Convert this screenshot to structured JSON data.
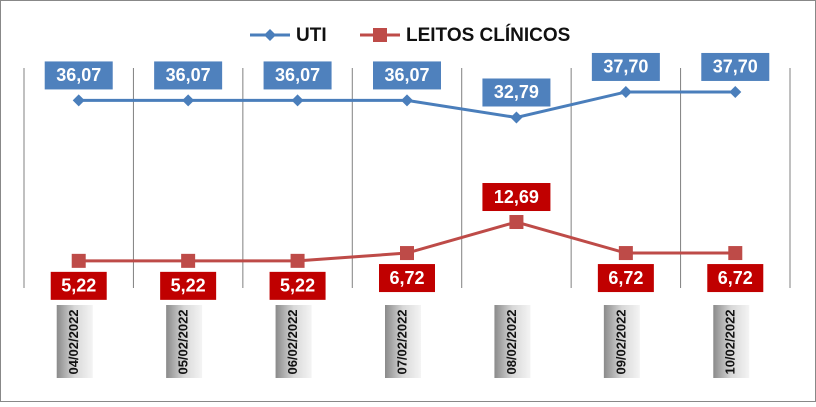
{
  "chart_data": {
    "type": "line",
    "categories": [
      "04/02/2022",
      "05/02/2022",
      "06/02/2022",
      "07/02/2022",
      "08/02/2022",
      "09/02/2022",
      "10/02/2022"
    ],
    "series": [
      {
        "name": "UTI",
        "color": "#4a7ebb",
        "label_color": "#4f81bd",
        "marker": "diamond",
        "values": [
          36.07,
          36.07,
          36.07,
          36.07,
          32.79,
          37.7,
          37.7
        ],
        "value_labels": [
          "36,07",
          "36,07",
          "36,07",
          "36,07",
          "32,79",
          "37,70",
          "37,70"
        ]
      },
      {
        "name": "LEITOS CLÍNICOS",
        "color": "#be4b48",
        "label_color": "#c00000",
        "marker": "square",
        "values": [
          5.22,
          5.22,
          5.22,
          6.72,
          12.69,
          6.72,
          6.72
        ],
        "value_labels": [
          "5,22",
          "5,22",
          "5,22",
          "6,72",
          "12,69",
          "6,72",
          "6,72"
        ]
      }
    ],
    "ylim": [
      0,
      40
    ],
    "grid": true,
    "legend": "top"
  }
}
